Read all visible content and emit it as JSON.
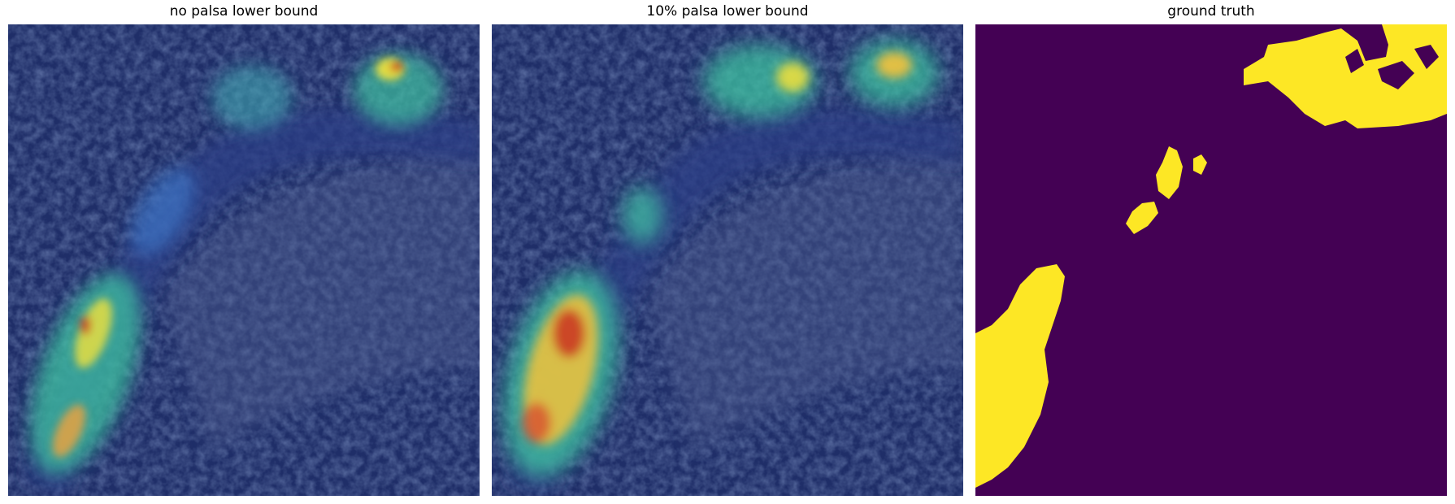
{
  "panels": [
    {
      "title": "no palsa lower bound"
    },
    {
      "title": "10% palsa lower bound"
    },
    {
      "title": "ground truth"
    }
  ],
  "colors": {
    "background": "#ffffff",
    "overlay_base": "#1b2a63",
    "heat_low": "#3f5bd0",
    "heat_mid": "#3fc1a0",
    "heat_high": "#f3e23b",
    "heat_peak": "#c8201c",
    "mask_background": "#440154",
    "mask_foreground": "#fde725"
  }
}
